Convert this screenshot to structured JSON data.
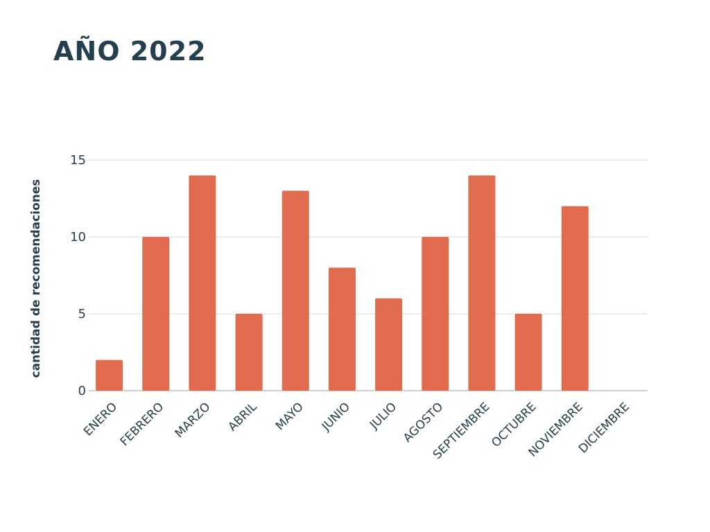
{
  "chart_data": {
    "type": "bar",
    "title": "AÑO 2022",
    "xlabel": "",
    "ylabel": "cantidad de recomendaciones",
    "categories": [
      "ENERO",
      "FEBRERO",
      "MARZO",
      "ABRIL",
      "MAYO",
      "JUNIO",
      "JULIO",
      "AGOSTO",
      "SEPTIEMBRE",
      "OCTUBRE",
      "NOVIEMBRE",
      "DICIEMBRE"
    ],
    "values": [
      2,
      10,
      14,
      5,
      13,
      8,
      6,
      10,
      14,
      5,
      12,
      0
    ],
    "ylim": [
      0,
      15
    ],
    "yticks": [
      0,
      5,
      10,
      15
    ],
    "grid": true,
    "bar_color": "#e06b4e",
    "grid_color": "#d9d9d9",
    "text_color": "#24404e"
  }
}
